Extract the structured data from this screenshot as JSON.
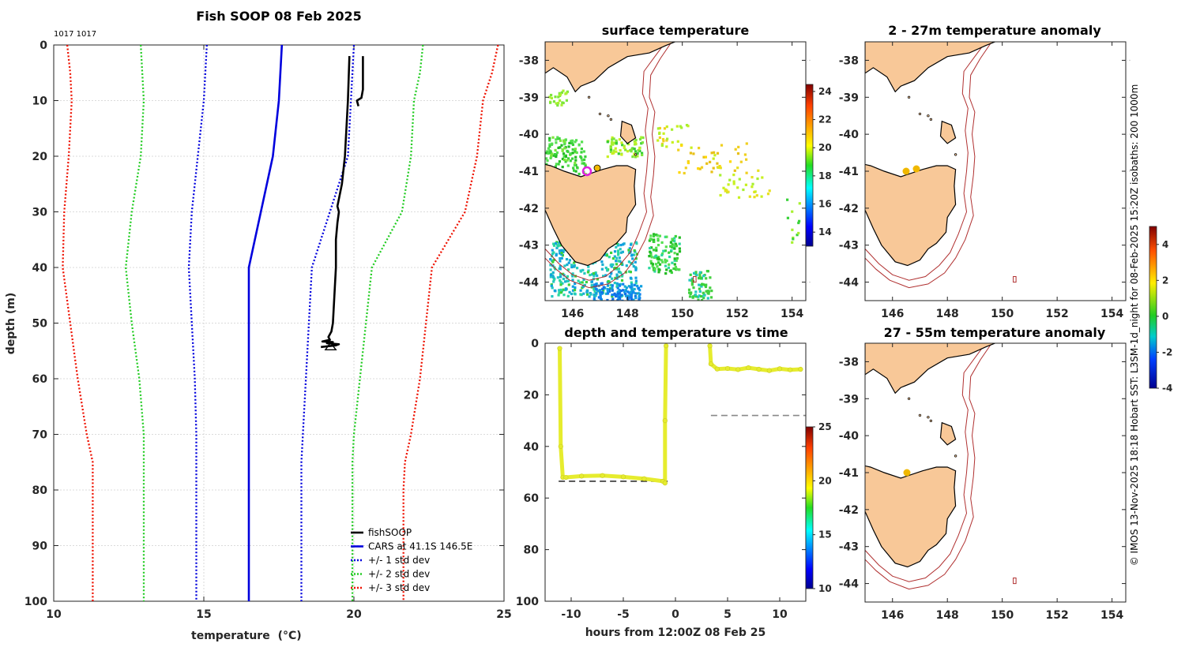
{
  "colors": {
    "fish": "#000000",
    "cars": "#0000dd",
    "std1": "#0000dd",
    "std2": "#22cc22",
    "std3": "#ee1100",
    "land": "#f8c898",
    "isobath": "#b03030",
    "marker": "#f0b800",
    "track": "#e6ec2e"
  },
  "chart_data": [
    {
      "id": "profile",
      "type": "line",
      "title": "Fish SOOP 08 Feb 2025",
      "corner_label": "1017 1017",
      "xlabel": "temperature",
      "xlabel_unit": "(°C)",
      "ylabel": "depth (m)",
      "xlim": [
        10,
        25
      ],
      "ylim": [
        0,
        100
      ],
      "xticks": [
        10,
        15,
        20,
        25
      ],
      "yticks": [
        0,
        10,
        20,
        30,
        40,
        50,
        60,
        70,
        80,
        90,
        100
      ],
      "legend": [
        "fishSOOP",
        "CARS at 41.1S 146.5E",
        "+/- 1 std dev",
        "+/- 2 std dev",
        "+/- 3 std dev"
      ],
      "depths": [
        0,
        5,
        10,
        20,
        30,
        40,
        50,
        60,
        70,
        75,
        80,
        90,
        100
      ],
      "series": [
        {
          "name": "CARS",
          "style": "solid",
          "color": "#0000dd",
          "temps": [
            17.6,
            17.55,
            17.5,
            17.3,
            16.9,
            16.5,
            16.5,
            16.5,
            16.5,
            16.5,
            16.5,
            16.5,
            16.5
          ]
        },
        {
          "name": "std1_lo",
          "style": "dotted",
          "color": "#0000dd",
          "temps": [
            15.1,
            15.05,
            15.0,
            14.8,
            14.6,
            14.5,
            14.6,
            14.7,
            14.75,
            14.75,
            14.75,
            14.75,
            14.75
          ]
        },
        {
          "name": "std1_hi",
          "style": "dotted",
          "color": "#0000dd",
          "temps": [
            20.0,
            19.95,
            19.9,
            19.8,
            19.2,
            18.6,
            18.5,
            18.4,
            18.3,
            18.25,
            18.25,
            18.25,
            18.25
          ]
        },
        {
          "name": "std2_lo",
          "style": "dotted",
          "color": "#22cc22",
          "temps": [
            12.9,
            12.95,
            13.0,
            12.9,
            12.6,
            12.4,
            12.6,
            12.85,
            13.0,
            13.0,
            13.0,
            13.0,
            13.0
          ]
        },
        {
          "name": "std2_hi",
          "style": "dotted",
          "color": "#22cc22",
          "temps": [
            22.3,
            22.2,
            22.0,
            21.9,
            21.6,
            20.6,
            20.4,
            20.2,
            20.0,
            19.95,
            19.95,
            19.95,
            19.95
          ]
        },
        {
          "name": "std3_lo",
          "style": "dotted",
          "color": "#ee1100",
          "temps": [
            10.45,
            10.55,
            10.6,
            10.5,
            10.35,
            10.3,
            10.55,
            10.8,
            11.1,
            11.3,
            11.3,
            11.3,
            11.3
          ]
        },
        {
          "name": "std3_hi",
          "style": "dotted",
          "color": "#ee1100",
          "temps": [
            24.8,
            24.6,
            24.3,
            24.1,
            23.7,
            22.6,
            22.4,
            22.2,
            21.9,
            21.7,
            21.65,
            21.65,
            21.65
          ]
        }
      ],
      "fish_up": {
        "temps": [
          20.3,
          20.3,
          20.25,
          20.1,
          20.15
        ],
        "depths": [
          2,
          8,
          9.5,
          10,
          11
        ]
      },
      "fish_down": {
        "temps": [
          19.85,
          19.8,
          19.75,
          19.7,
          19.6,
          19.45,
          19.5,
          19.45,
          19.4,
          19.4,
          19.3,
          19.25,
          19.15,
          19.2,
          18.95,
          19.3,
          19.1,
          19.5,
          19.4,
          18.9
        ],
        "depths": [
          2,
          10,
          15,
          20,
          25,
          29,
          30,
          32,
          35,
          40,
          50,
          51.5,
          52.5,
          53,
          53.3,
          53.4,
          53.6,
          53.8,
          54,
          54.3
        ]
      }
    },
    {
      "id": "depth_time",
      "type": "scatter",
      "title": "depth and temperature vs time",
      "xlabel": "hours from 12:00Z 08 Feb 25",
      "xlim": [
        -12.5,
        12.5
      ],
      "ylim": [
        0,
        100
      ],
      "xticks": [
        -10,
        -5,
        0,
        5,
        10
      ],
      "yticks": [
        0,
        20,
        40,
        60,
        80,
        100
      ],
      "colorbar": {
        "range": [
          10,
          25
        ],
        "ticks": [
          10,
          15,
          20,
          25
        ]
      },
      "segment1": {
        "hours": [
          -11.1,
          -11.0,
          -10.8,
          -10.5,
          -9,
          -7,
          -5,
          -3,
          -1.2,
          -1.0,
          -1.0,
          -0.9
        ],
        "depths": [
          2,
          40,
          52,
          52,
          51.5,
          51.3,
          51.8,
          52.5,
          53.5,
          54.2,
          30,
          1
        ]
      },
      "segment2": {
        "hours": [
          3.3,
          3.4,
          4,
          5,
          6,
          7,
          8,
          9,
          10,
          11,
          12
        ],
        "depths": [
          1,
          8,
          10,
          9.8,
          10.2,
          9.5,
          10.1,
          10.6,
          9.9,
          10.3,
          10.1
        ]
      },
      "dash_lines": [
        {
          "x0": -11.2,
          "x1": -0.7,
          "depth": 53.5
        },
        {
          "x0": 3.4,
          "x1": 12.5,
          "depth": 28
        }
      ]
    },
    {
      "id": "sst_map",
      "type": "heatmap",
      "title": "surface temperature",
      "xlim": [
        145,
        154.5
      ],
      "ylim": [
        -44.5,
        -37.5
      ],
      "xticks": [
        146,
        148,
        150,
        152,
        154
      ],
      "yticks": [
        -38,
        -39,
        -40,
        -41,
        -42,
        -43,
        -44
      ],
      "colorbar": {
        "range": [
          13,
          24.5
        ],
        "ticks": [
          14,
          16,
          18,
          20,
          22,
          24
        ]
      }
    },
    {
      "id": "anom_2_27",
      "type": "heatmap",
      "title": "2 - 27m temperature anomaly",
      "xlim": [
        145,
        154.5
      ],
      "ylim": [
        -44.5,
        -37.5
      ],
      "xticks": [
        146,
        148,
        150,
        152,
        154
      ],
      "yticks": [
        -38,
        -39,
        -40,
        -41,
        -42,
        -43,
        -44
      ]
    },
    {
      "id": "anom_27_55",
      "type": "heatmap",
      "title": "27 - 55m temperature anomaly",
      "xlim": [
        145,
        154.5
      ],
      "ylim": [
        -44.5,
        -37.5
      ],
      "xticks": [
        146,
        148,
        150,
        152,
        154
      ],
      "yticks": [
        -38,
        -39,
        -40,
        -41,
        -42,
        -43,
        -44
      ],
      "colorbar": {
        "range": [
          -4,
          5
        ],
        "ticks": [
          -4,
          -2,
          0,
          2,
          4
        ]
      }
    }
  ],
  "side_note": "© IMOS 13-Nov-2025 18:18 Hobart SST: L3SM-1d_night for 08-Feb-2025 15:20Z isobaths: 200 1000m"
}
